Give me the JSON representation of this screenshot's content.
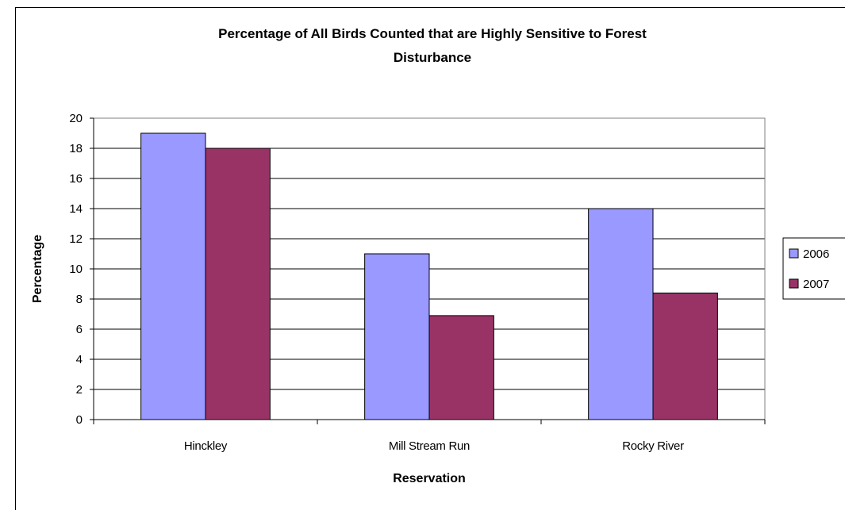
{
  "chart_data": {
    "type": "bar",
    "title": "Percentage of All Birds Counted that are Highly Sensitive to Forest Disturbance",
    "title_lines": [
      "Percentage of All Birds Counted that are Highly Sensitive to Forest",
      "Disturbance"
    ],
    "xlabel": "Reservation",
    "ylabel": "Percentage",
    "categories": [
      "Hinckley",
      "Mill Stream Run",
      "Rocky River"
    ],
    "series": [
      {
        "name": "2006",
        "values": [
          19,
          11,
          14
        ],
        "color": "#9999ff"
      },
      {
        "name": "2007",
        "values": [
          18,
          6.9,
          8.4
        ],
        "color": "#993366"
      }
    ],
    "ylim": [
      0,
      20
    ],
    "yticks": [
      0,
      2,
      4,
      6,
      8,
      10,
      12,
      14,
      16,
      18,
      20
    ],
    "grid": true,
    "legend_position": "right"
  }
}
